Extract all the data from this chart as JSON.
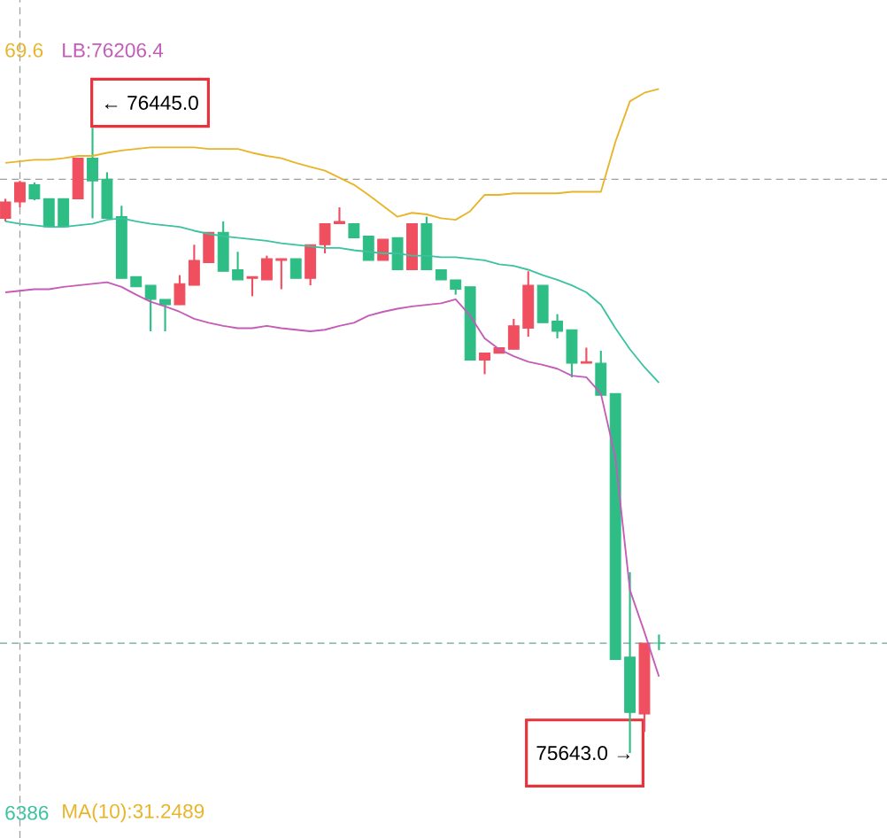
{
  "chart_data": {
    "type": "candlestick",
    "categories": [
      null,
      null,
      null,
      null,
      null,
      null,
      null,
      null,
      null,
      null,
      null,
      null,
      null,
      null,
      null,
      null,
      null,
      null,
      null,
      null,
      null,
      null,
      null,
      null,
      null,
      null,
      null,
      null,
      null,
      null,
      null,
      null,
      null,
      null,
      null,
      null,
      null,
      null,
      null,
      null,
      null,
      null,
      null,
      null,
      null,
      null
    ],
    "ohlc": [
      [
        76329,
        76354,
        76325,
        76350
      ],
      [
        76350,
        76377,
        76343,
        76375
      ],
      [
        76372,
        76375,
        76352,
        76354
      ],
      [
        76354,
        76354,
        76318,
        76318
      ],
      [
        76354,
        76354,
        76318,
        76318
      ],
      [
        76354,
        76406,
        76354,
        76406
      ],
      [
        76406,
        76445,
        76329,
        76377
      ],
      [
        76379,
        76388,
        76329,
        76329
      ],
      [
        76331,
        76345,
        76252,
        76252
      ],
      [
        76254,
        76254,
        76241,
        76241
      ],
      [
        76243,
        76243,
        76184,
        76225
      ],
      [
        76225,
        76225,
        76184,
        76218
      ],
      [
        76218,
        76256,
        76218,
        76245
      ],
      [
        76243,
        76295,
        76243,
        76275
      ],
      [
        76272,
        76311,
        76272,
        76311
      ],
      [
        76311,
        76325,
        76261,
        76261
      ],
      [
        76263,
        76286,
        76250,
        76250
      ],
      [
        76252,
        76254,
        76229,
        76254
      ],
      [
        76250,
        76281,
        76250,
        76277
      ],
      [
        76275,
        76277,
        76238,
        76277
      ],
      [
        76277,
        76277,
        76252,
        76252
      ],
      [
        76252,
        76295,
        76243,
        76295
      ],
      [
        76295,
        76322,
        76284,
        76322
      ],
      [
        76322,
        76343,
        76322,
        76325
      ],
      [
        76322,
        76322,
        76304,
        76304
      ],
      [
        76306,
        76306,
        76275,
        76275
      ],
      [
        76275,
        76302,
        76275,
        76302
      ],
      [
        76304,
        76304,
        76263,
        76263
      ],
      [
        76263,
        76322,
        76263,
        76322
      ],
      [
        76322,
        76331,
        76263,
        76263
      ],
      [
        76263,
        76263,
        76250,
        76250
      ],
      [
        76250,
        76250,
        76231,
        76238
      ],
      [
        76241,
        76241,
        76147,
        76147
      ],
      [
        76147,
        76156,
        76129,
        76156
      ],
      [
        76156,
        76163,
        76156,
        76163
      ],
      [
        76161,
        76200,
        76161,
        76191
      ],
      [
        76188,
        76261,
        76177,
        76243
      ],
      [
        76243,
        76243,
        76195,
        76195
      ],
      [
        76197,
        76206,
        76175,
        76184
      ],
      [
        76186,
        76186,
        76125,
        76143
      ],
      [
        76143,
        76163,
        76143,
        76145
      ],
      [
        76143,
        76159,
        76102,
        76102
      ],
      [
        76104,
        76104,
        75763,
        75763
      ],
      [
        75766,
        75875,
        75643,
        75695
      ],
      [
        75693,
        75784,
        75670,
        75784
      ],
      [
        75784,
        75795,
        75775,
        75784
      ]
    ],
    "colors": [
      "#ef4f5f",
      "#ef4f5f",
      "#2ebd85",
      "#2ebd85",
      "#2ebd85",
      "#ef4f5f",
      "#2ebd85",
      "#2ebd85",
      "#2ebd85",
      "#2ebd85",
      "#2ebd85",
      "#2ebd85",
      "#ef4f5f",
      "#ef4f5f",
      "#ef4f5f",
      "#2ebd85",
      "#2ebd85",
      "#ef4f5f",
      "#ef4f5f",
      "#ef4f5f",
      "#2ebd85",
      "#ef4f5f",
      "#ef4f5f",
      "#ef4f5f",
      "#2ebd85",
      "#2ebd85",
      "#ef4f5f",
      "#2ebd85",
      "#ef4f5f",
      "#2ebd85",
      "#2ebd85",
      "#2ebd85",
      "#2ebd85",
      "#ef4f5f",
      "#ef4f5f",
      "#ef4f5f",
      "#ef4f5f",
      "#2ebd85",
      "#2ebd85",
      "#2ebd85",
      "#ef4f5f",
      "#2ebd85",
      "#2ebd85",
      "#2ebd85",
      "#ef4f5f",
      "#2ebd85"
    ],
    "series": [
      {
        "type": "line",
        "color": "#e8b52a",
        "values": [
          76400,
          76402,
          76404,
          76404,
          76406,
          76409,
          76409,
          76413,
          76416,
          76418,
          76420,
          76420,
          76420,
          76420,
          76418,
          76418,
          76418,
          76413,
          76409,
          76406,
          76400,
          76395,
          76390,
          76381,
          76372,
          76359,
          76345,
          76331,
          76336,
          76334,
          76329,
          76327,
          76338,
          76359,
          76359,
          76361,
          76361,
          76361,
          76361,
          76363,
          76363,
          76363,
          76427,
          76479,
          76490,
          76495
        ]
      },
      {
        "type": "line",
        "color": "#3cc2a0",
        "values": [
          76325,
          76322,
          76320,
          76318,
          76318,
          76320,
          76322,
          76327,
          76329,
          76325,
          76322,
          76320,
          76318,
          76313,
          76309,
          76306,
          76304,
          76302,
          76300,
          76297,
          76295,
          76293,
          76291,
          76291,
          76288,
          76286,
          76284,
          76284,
          76281,
          76281,
          76279,
          76279,
          76277,
          76275,
          76270,
          76268,
          76263,
          76256,
          76250,
          76243,
          76234,
          76218,
          76188,
          76161,
          76138,
          76118
        ]
      },
      {
        "type": "line",
        "color": "#c45cb8",
        "values": [
          76234,
          76236,
          76238,
          76238,
          76241,
          76243,
          76245,
          76247,
          76241,
          76231,
          76222,
          76216,
          76209,
          76200,
          76195,
          76191,
          76188,
          76188,
          76191,
          76188,
          76186,
          76184,
          76186,
          76191,
          76195,
          76204,
          76209,
          76213,
          76216,
          76218,
          76220,
          76225,
          76204,
          76175,
          76161,
          76152,
          76145,
          76141,
          76136,
          76127,
          76125,
          76104,
          76022,
          75852,
          75798,
          75741
        ]
      }
    ],
    "ylim": [
      75534,
      76609
    ],
    "tick_labels": false,
    "ref_lines": [
      {
        "axis": "y",
        "value": 76379,
        "color": "#9e9e9e",
        "line_style": "dashed"
      },
      {
        "axis": "y",
        "value": 75784,
        "color": "#6fa8a0",
        "line_style": "dashed"
      }
    ],
    "annotations": [
      "69.6",
      "LB:76206.4",
      "← 76445.0",
      "75643.0 →",
      "6386",
      "MA(10):31.2489"
    ]
  }
}
